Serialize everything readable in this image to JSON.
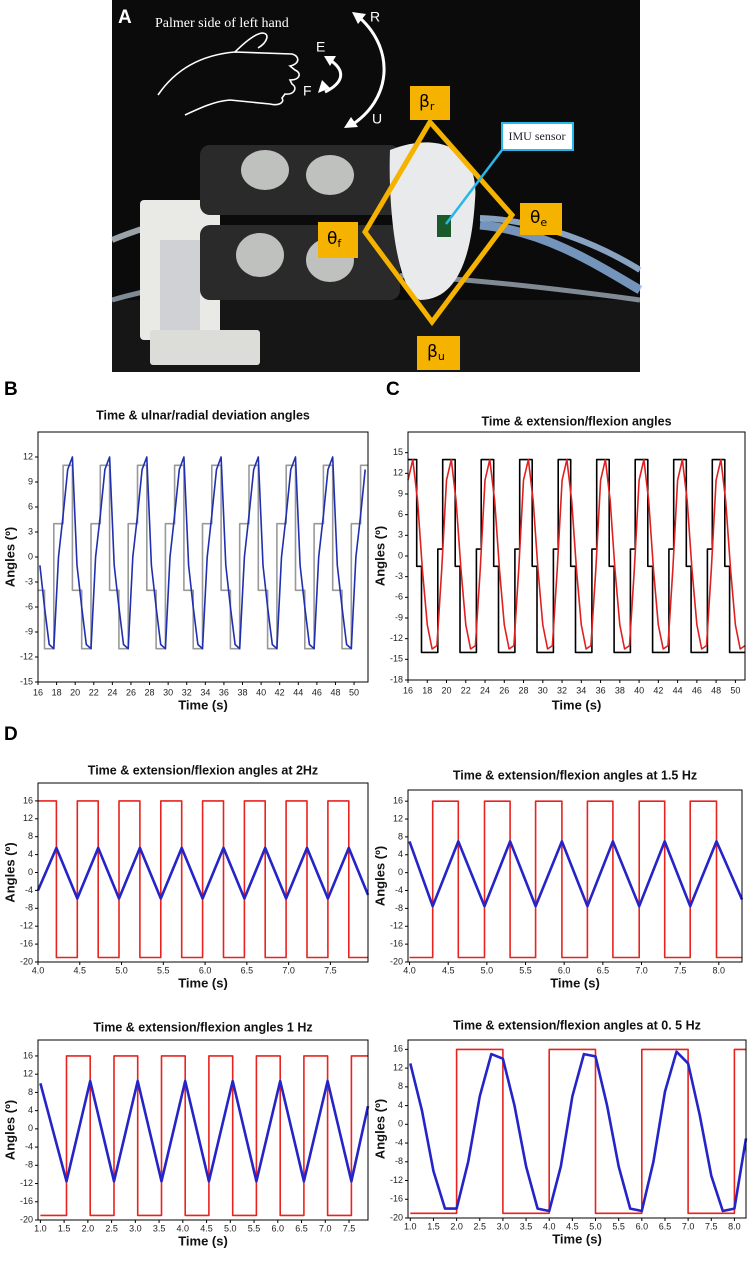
{
  "panel_a": {
    "label": "A",
    "hand_caption": "Palmer side of left hand",
    "directions": [
      "R",
      "E",
      "F",
      "U"
    ],
    "angles": [
      {
        "symbol": "β",
        "subscript": "r"
      },
      {
        "symbol": "θ",
        "subscript": "f"
      },
      {
        "symbol": "θ",
        "subscript": "e"
      },
      {
        "symbol": "β",
        "subscript": "u"
      }
    ],
    "sensor_label": "IMU sensor"
  },
  "panel_labels": [
    "B",
    "C",
    "D"
  ],
  "chart_data": [
    {
      "type": "line",
      "title": "Time & ulnar/radial deviation angles",
      "x_label": "Time (s)",
      "y_label": "Angles (º)",
      "xlim": [
        16,
        51.5
      ],
      "ylim": [
        -15,
        15
      ],
      "xticks": [
        16,
        18,
        20,
        22,
        24,
        26,
        28,
        30,
        32,
        34,
        36,
        38,
        40,
        42,
        44,
        46,
        48,
        50
      ],
      "yticks": [
        12,
        9,
        6,
        3,
        0,
        -3,
        -6,
        -9,
        -12,
        -15
      ],
      "series": [
        {
          "color": "#999999",
          "drawstyle": "steps-post",
          "x": [
            16,
            16.7,
            17.7,
            18.7,
            19.7,
            20.7,
            21.7,
            22.7,
            23.7,
            24.7,
            25.7,
            26.7,
            27.7,
            28.7,
            29.7,
            30.7,
            31.7,
            32.7,
            33.7,
            34.7,
            35.7,
            36.7,
            37.7,
            38.7,
            39.7,
            40.7,
            41.7,
            42.7,
            43.7,
            44.7,
            45.7,
            46.7,
            47.7,
            48.7,
            49.7,
            50.7
          ],
          "values": [
            -4,
            -11,
            4,
            11,
            -4,
            -11,
            4,
            11,
            -4,
            -11,
            4,
            11,
            -4,
            -11,
            4,
            11,
            -4,
            -11,
            4,
            11,
            -4,
            -11,
            4,
            11,
            -4,
            -11,
            4,
            11,
            -4,
            -11,
            4,
            11,
            -4,
            -11,
            4,
            11
          ]
        },
        {
          "color": "#1f2fb0",
          "x": [
            16.2,
            16.7,
            17.2,
            17.7,
            18.2,
            18.7,
            19.2,
            19.7,
            20.2,
            20.7,
            21.2,
            21.7,
            22.2,
            22.7,
            23.2,
            23.7,
            24.2,
            24.7,
            25.2,
            25.7,
            26.2,
            26.7,
            27.2,
            27.7,
            28.2,
            28.7,
            29.2,
            29.7,
            30.2,
            30.7,
            31.2,
            31.7,
            32.2,
            32.7,
            33.2,
            33.7,
            34.2,
            34.7,
            35.2,
            35.7,
            36.2,
            36.7,
            37.2,
            37.7,
            38.2,
            38.7,
            39.2,
            39.7,
            40.2,
            40.7,
            41.2,
            41.7,
            42.2,
            42.7,
            43.2,
            43.7,
            44.2,
            44.7,
            45.2,
            45.7,
            46.2,
            46.7,
            47.2,
            47.7,
            48.2,
            48.7,
            49.2,
            49.7,
            50.2,
            50.7,
            51.2
          ],
          "values": [
            -1,
            -6,
            -10.5,
            -11,
            0,
            5,
            10.5,
            12,
            -1,
            -6,
            -10.5,
            -11,
            0,
            5,
            10.5,
            12,
            -1,
            -6,
            -10.5,
            -11,
            0,
            5,
            10.5,
            12,
            -1,
            -6,
            -10.5,
            -11,
            0,
            5,
            10.5,
            12,
            -1,
            -6,
            -10.5,
            -11,
            0,
            5,
            10.5,
            12,
            -1,
            -6,
            -10.5,
            -11,
            0,
            5,
            10.5,
            12,
            -1,
            -6,
            -10.5,
            -11,
            0,
            5,
            10.5,
            12,
            -1,
            -6,
            -10.5,
            -11,
            0,
            5,
            10.5,
            12,
            -1,
            -6,
            -10.5,
            -11,
            0,
            5,
            10.5
          ]
        }
      ]
    },
    {
      "type": "line",
      "title": "Time & extension/flexion angles",
      "x_label": "Time (s)",
      "y_label": "Angles (º)",
      "xlim": [
        16,
        51
      ],
      "ylim": [
        -18,
        18
      ],
      "xticks": [
        16,
        18,
        20,
        22,
        24,
        26,
        28,
        30,
        32,
        34,
        36,
        38,
        40,
        42,
        44,
        46,
        48,
        50
      ],
      "yticks": [
        15,
        12,
        9,
        6,
        3,
        0,
        -3,
        -6,
        -9,
        -12,
        -15,
        -18
      ],
      "series": [
        {
          "color": "#000000",
          "drawstyle": "steps-post",
          "x": [
            16,
            16.9,
            17.4,
            19.1,
            19.6,
            20.9,
            21.4,
            23.1,
            23.6,
            24.9,
            25.4,
            27.1,
            27.6,
            28.9,
            29.4,
            31.1,
            31.6,
            32.9,
            33.4,
            35.1,
            35.6,
            36.9,
            37.4,
            39.1,
            39.6,
            40.9,
            41.4,
            43.1,
            43.6,
            44.9,
            45.4,
            47.1,
            47.6,
            48.9,
            49.4
          ],
          "values": [
            14,
            -1.5,
            -14,
            1,
            14,
            -1.5,
            -14,
            1,
            14,
            -1.5,
            -14,
            1,
            14,
            -1.5,
            -14,
            1,
            14,
            -1.5,
            -14,
            1,
            14,
            -1.5,
            -14,
            1,
            14,
            -1.5,
            -14,
            1,
            14,
            -1.5,
            -14,
            1,
            14,
            -1.5,
            -14
          ]
        },
        {
          "color": "#e02020",
          "x": [
            16,
            16.5,
            17,
            17.5,
            18,
            18.5,
            19,
            19.5,
            20,
            20.5,
            21,
            21.5,
            22,
            22.5,
            23,
            23.5,
            24,
            24.5,
            25,
            25.5,
            26,
            26.5,
            27,
            27.5,
            28,
            28.5,
            29,
            29.5,
            30,
            30.5,
            31,
            31.5,
            32,
            32.5,
            33,
            33.5,
            34,
            34.5,
            35,
            35.5,
            36,
            36.5,
            37,
            37.5,
            38,
            38.5,
            39,
            39.5,
            40,
            40.5,
            41,
            41.5,
            42,
            42.5,
            43,
            43.5,
            44,
            44.5,
            45,
            45.5,
            46,
            46.5,
            47,
            47.5,
            48,
            48.5,
            49,
            49.5,
            50,
            50.5,
            51
          ],
          "values": [
            11,
            14,
            8,
            -2,
            -10,
            -13.5,
            -13,
            -2,
            11,
            14,
            8,
            -2,
            -10,
            -13.5,
            -13,
            -2,
            11,
            14,
            8,
            -2,
            -10,
            -13.5,
            -13,
            -2,
            11,
            14,
            8,
            -2,
            -10,
            -13.5,
            -13,
            -2,
            11,
            14,
            8,
            -2,
            -10,
            -13.5,
            -13,
            -2,
            11,
            14,
            8,
            -2,
            -10,
            -13.5,
            -13,
            -2,
            11,
            14,
            8,
            -2,
            -10,
            -13.5,
            -13,
            -2,
            11,
            14,
            8,
            -2,
            -10,
            -13.5,
            -13,
            -2,
            11,
            14,
            8,
            -2,
            -10,
            -13.5,
            -13
          ]
        }
      ]
    },
    {
      "type": "line",
      "title": "Time & extension/flexion angles at 2Hz",
      "x_label": "Time (s)",
      "y_label": "Angles (º)",
      "xlim": [
        4,
        7.95
      ],
      "ylim": [
        -20,
        20
      ],
      "xticks": [
        {
          "value": 4,
          "label": "4.0"
        },
        4.5,
        {
          "value": 5,
          "label": "5.0"
        },
        5.5,
        {
          "value": 6,
          "label": "6.0"
        },
        6.5,
        {
          "value": 7,
          "label": "7.0"
        },
        7.5
      ],
      "yticks": [
        16,
        12,
        8,
        4,
        0,
        -4,
        -8,
        -12,
        -16,
        -20
      ],
      "series": [
        {
          "color": "#e8231e",
          "drawstyle": "steps-post",
          "x": [
            4,
            4.22,
            4.47,
            4.72,
            4.97,
            5.22,
            5.47,
            5.72,
            5.97,
            6.22,
            6.47,
            6.72,
            6.97,
            7.22,
            7.47,
            7.72
          ],
          "values": [
            16,
            -19,
            16,
            -19,
            16,
            -19,
            16,
            -19,
            16,
            -19,
            16,
            -19,
            16,
            -19,
            16,
            -19
          ]
        },
        {
          "color": "#2424c8",
          "x": [
            4,
            4.22,
            4.47,
            4.72,
            4.97,
            5.22,
            5.47,
            5.72,
            5.97,
            6.22,
            6.47,
            6.72,
            6.97,
            7.22,
            7.47,
            7.72,
            7.95
          ],
          "values": [
            -4,
            5.5,
            -5.8,
            5.5,
            -5.8,
            5.5,
            -5.8,
            5.5,
            -5.8,
            5.5,
            -5.8,
            5.5,
            -5.8,
            5.5,
            -5.8,
            5.5,
            -5
          ]
        }
      ]
    },
    {
      "type": "line",
      "title": "Time & extension/flexion angles at 1.5 Hz",
      "x_label": "Time (s)",
      "y_label": "Angles (º)",
      "xlim": [
        3.98,
        8.3
      ],
      "ylim": [
        -20,
        18.5
      ],
      "xticks": [
        {
          "value": 4,
          "label": "4.0"
        },
        4.5,
        {
          "value": 5,
          "label": "5.0"
        },
        5.5,
        {
          "value": 6,
          "label": "6.0"
        },
        6.5,
        {
          "value": 7,
          "label": "7.0"
        },
        7.5,
        {
          "value": 8,
          "label": "8.0"
        }
      ],
      "yticks": [
        16,
        12,
        8,
        4,
        0,
        -4,
        -8,
        -12,
        -16,
        -20
      ],
      "series": [
        {
          "color": "#e8231e",
          "drawstyle": "steps-post",
          "x": [
            4,
            4.3,
            4.63,
            4.97,
            5.3,
            5.63,
            5.97,
            6.3,
            6.63,
            6.97,
            7.3,
            7.63,
            7.97
          ],
          "values": [
            -19,
            16,
            -19,
            16,
            -19,
            16,
            -19,
            16,
            -19,
            16,
            -19,
            16,
            -19
          ]
        },
        {
          "color": "#2424c8",
          "x": [
            4,
            4.3,
            4.63,
            4.97,
            5.3,
            5.63,
            5.97,
            6.3,
            6.63,
            6.97,
            7.3,
            7.63,
            7.97,
            8.3
          ],
          "values": [
            7,
            -7.5,
            7,
            -7.5,
            7,
            -7.5,
            7,
            -7.5,
            7,
            -7.5,
            7,
            -7.5,
            7,
            -6
          ]
        }
      ]
    },
    {
      "type": "line",
      "title": "Time & extension/flexion angles  1 Hz",
      "x_label": "Time (s)",
      "y_label": "Angles (º)",
      "xlim": [
        0.95,
        7.9
      ],
      "ylim": [
        -20,
        19.5
      ],
      "xticks": [
        {
          "value": 1,
          "label": "1.0"
        },
        1.5,
        {
          "value": 2,
          "label": "2.0"
        },
        2.5,
        {
          "value": 3,
          "label": "3.0"
        },
        3.5,
        {
          "value": 4,
          "label": "4.0"
        },
        4.5,
        {
          "value": 5,
          "label": "5.0"
        },
        5.5,
        {
          "value": 6,
          "label": "6.0"
        },
        6.5,
        {
          "value": 7,
          "label": "7.0"
        },
        7.5
      ],
      "yticks": [
        16,
        12,
        8,
        4,
        0,
        -4,
        -8,
        -12,
        -16,
        -20
      ],
      "series": [
        {
          "color": "#e8231e",
          "drawstyle": "steps-post",
          "x": [
            1,
            1.55,
            2.05,
            2.55,
            3.05,
            3.55,
            4.05,
            4.55,
            5.05,
            5.55,
            6.05,
            6.55,
            7.05,
            7.55
          ],
          "values": [
            -19,
            16,
            -19,
            16,
            -19,
            16,
            -19,
            16,
            -19,
            16,
            -19,
            16,
            -19,
            16
          ]
        },
        {
          "color": "#2424c8",
          "x": [
            1,
            1.55,
            2.05,
            2.55,
            3.05,
            3.55,
            4.05,
            4.55,
            5.05,
            5.55,
            6.05,
            6.55,
            7.05,
            7.55,
            7.9
          ],
          "values": [
            10,
            -11.5,
            10.5,
            -11.5,
            10.5,
            -11.5,
            10.5,
            -11.5,
            10.5,
            -11.5,
            10.5,
            -11.5,
            10.5,
            -11.5,
            5
          ]
        }
      ]
    },
    {
      "type": "line",
      "title": "Time & extension/flexion angles at 0. 5 Hz",
      "x_label": "Time (s)",
      "y_label": "Angles (º)",
      "xlim": [
        0.95,
        8.25
      ],
      "ylim": [
        -20,
        18
      ],
      "xticks": [
        {
          "value": 1,
          "label": "1.0"
        },
        1.5,
        {
          "value": 2,
          "label": "2.0"
        },
        2.5,
        {
          "value": 3,
          "label": "3.0"
        },
        3.5,
        {
          "value": 4,
          "label": "4.0"
        },
        4.5,
        {
          "value": 5,
          "label": "5.0"
        },
        5.5,
        {
          "value": 6,
          "label": "6.0"
        },
        6.5,
        {
          "value": 7,
          "label": "7.0"
        },
        7.5,
        {
          "value": 8,
          "label": "8.0"
        }
      ],
      "yticks": [
        16,
        12,
        8,
        4,
        0,
        -4,
        -8,
        -12,
        -16,
        -20
      ],
      "series": [
        {
          "color": "#e8231e",
          "drawstyle": "steps-post",
          "x": [
            1,
            2,
            3,
            4,
            5,
            6,
            7,
            8
          ],
          "values": [
            -19,
            16,
            -19,
            16,
            -19,
            16,
            -19,
            16
          ]
        },
        {
          "color": "#2424c8",
          "x": [
            1,
            1.25,
            1.5,
            1.75,
            2,
            2.25,
            2.5,
            2.75,
            3,
            3.25,
            3.5,
            3.75,
            4,
            4.25,
            4.5,
            4.75,
            5,
            5.25,
            5.5,
            5.75,
            6,
            6.25,
            6.5,
            6.75,
            7,
            7.25,
            7.5,
            7.75,
            8,
            8.25
          ],
          "values": [
            13,
            3,
            -10,
            -18,
            -18,
            -8,
            6,
            15,
            14,
            4,
            -9,
            -18,
            -18.5,
            -9,
            6,
            15,
            14.5,
            4,
            -9,
            -18,
            -18.5,
            -8,
            7,
            15.5,
            13,
            2,
            -11,
            -18.5,
            -18,
            -3
          ]
        }
      ]
    }
  ]
}
